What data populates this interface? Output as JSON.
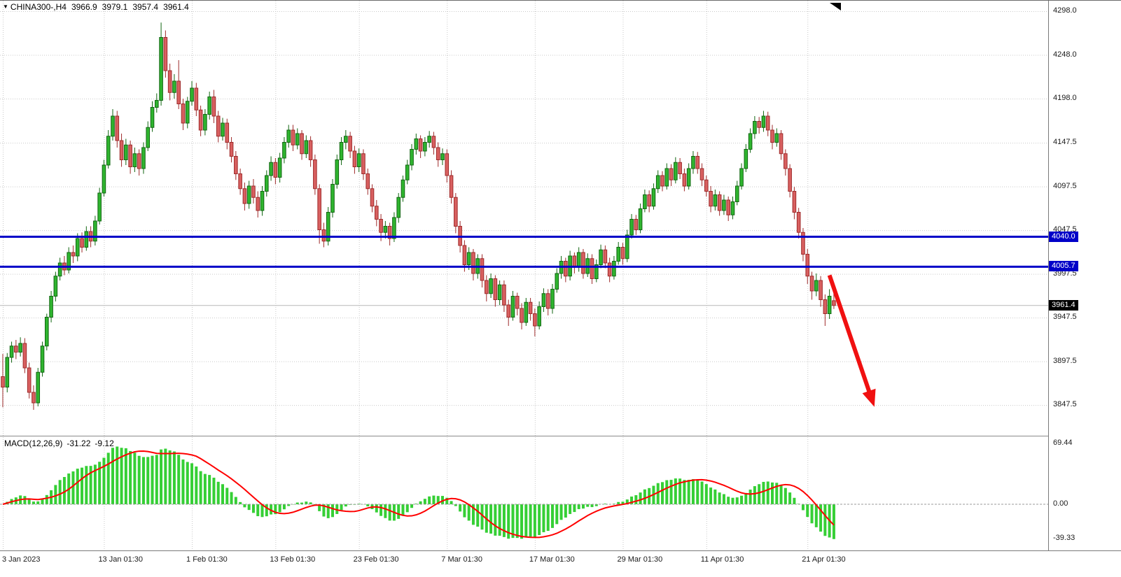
{
  "header": {
    "dropdown_icon": "▼",
    "symbol": "CHINA300-,H4",
    "open": "3966.9",
    "high": "3979.1",
    "low": "3957.4",
    "close": "3961.4"
  },
  "colors": {
    "bull": "#2FB52F",
    "bull_border": "#116611",
    "bear": "#D86060",
    "bear_border": "#9E2B2B",
    "grid": "#c9c9c9",
    "level_line": "#0000C8",
    "current_line": "#b8b8b8",
    "macd_bar": "#35CF35",
    "macd_signal": "#FF0000",
    "arrow": "#F01010",
    "badge_current_bg": "#000000"
  },
  "chart_data": {
    "type": "candlestick",
    "symbol": "CHINA300-",
    "timeframe": "H4",
    "price_axis": {
      "visible_min": 3812,
      "visible_max": 4310,
      "ticks": [
        {
          "value": 4298.0,
          "label": "4298.0"
        },
        {
          "value": 4248.0,
          "label": "4248.0"
        },
        {
          "value": 4198.0,
          "label": "4198.0"
        },
        {
          "value": 4147.5,
          "label": "4147.5"
        },
        {
          "value": 4097.5,
          "label": "4097.5"
        },
        {
          "value": 4047.5,
          "label": "4047.5"
        },
        {
          "value": 3997.5,
          "label": "3997.5"
        },
        {
          "value": 3947.5,
          "label": "3947.5"
        },
        {
          "value": 3897.5,
          "label": "3897.5"
        },
        {
          "value": 3847.5,
          "label": "3847.5"
        }
      ]
    },
    "time_axis": {
      "ticks": [
        {
          "label": "3 Jan 2023",
          "index": 0
        },
        {
          "label": "13 Jan 01:30",
          "index": 23
        },
        {
          "label": "1 Feb 01:30",
          "index": 43
        },
        {
          "label": "13 Feb 01:30",
          "index": 62
        },
        {
          "label": "23 Feb 01:30",
          "index": 81
        },
        {
          "label": "7 Mar 01:30",
          "index": 101
        },
        {
          "label": "17 Mar 01:30",
          "index": 121
        },
        {
          "label": "29 Mar 01:30",
          "index": 141
        },
        {
          "label": "11 Apr 01:30",
          "index": 160
        },
        {
          "label": "21 Apr 01:30",
          "index": 183
        }
      ]
    },
    "levels": [
      {
        "price": 4040.0,
        "label": "4040.0"
      },
      {
        "price": 4005.7,
        "label": "4005.7"
      }
    ],
    "current_price": {
      "value": 3961.4,
      "label": "3961.4"
    },
    "annotations": [
      {
        "type": "arrow",
        "from_index": 188,
        "from_price": 3996,
        "to_index": 197.5,
        "to_price": 3856
      }
    ],
    "indicator": {
      "type": "MACD",
      "name": "MACD(12,26,9)",
      "params": [
        12,
        26,
        9
      ],
      "main_value": "-31.22",
      "signal_value": "-9.12",
      "axis_ticks": [
        {
          "value": 69.44,
          "label": "69.44"
        },
        {
          "value": 0,
          "label": "0.00"
        },
        {
          "value": -39.33,
          "label": "-39.33"
        }
      ]
    },
    "candles": [
      [
        3880,
        3906,
        3845,
        3868
      ],
      [
        3868,
        3907,
        3862,
        3902
      ],
      [
        3902,
        3920,
        3896,
        3915
      ],
      [
        3915,
        3922,
        3900,
        3908
      ],
      [
        3908,
        3925,
        3903,
        3918
      ],
      [
        3918,
        3924,
        3884,
        3890
      ],
      [
        3890,
        3896,
        3855,
        3862
      ],
      [
        3862,
        3870,
        3842,
        3850
      ],
      [
        3850,
        3890,
        3846,
        3885
      ],
      [
        3885,
        3920,
        3880,
        3915
      ],
      [
        3915,
        3952,
        3910,
        3948
      ],
      [
        3948,
        3978,
        3942,
        3972
      ],
      [
        3972,
        4000,
        3966,
        3995
      ],
      [
        3995,
        4016,
        3990,
        4010
      ],
      [
        4010,
        4018,
        3996,
        4002
      ],
      [
        4002,
        4028,
        3998,
        4022
      ],
      [
        4022,
        4030,
        4010,
        4018
      ],
      [
        4018,
        4044,
        4012,
        4038
      ],
      [
        4038,
        4045,
        4022,
        4028
      ],
      [
        4028,
        4052,
        4024,
        4046
      ],
      [
        4046,
        4052,
        4028,
        4035
      ],
      [
        4035,
        4064,
        4030,
        4058
      ],
      [
        4058,
        4096,
        4054,
        4090
      ],
      [
        4090,
        4128,
        4086,
        4122
      ],
      [
        4122,
        4162,
        4118,
        4155
      ],
      [
        4155,
        4186,
        4150,
        4178
      ],
      [
        4178,
        4184,
        4142,
        4150
      ],
      [
        4150,
        4158,
        4120,
        4128
      ],
      [
        4128,
        4152,
        4122,
        4145
      ],
      [
        4145,
        4150,
        4112,
        4120
      ],
      [
        4120,
        4142,
        4114,
        4135
      ],
      [
        4135,
        4140,
        4110,
        4118
      ],
      [
        4118,
        4148,
        4112,
        4142
      ],
      [
        4142,
        4172,
        4138,
        4165
      ],
      [
        4165,
        4195,
        4160,
        4188
      ],
      [
        4188,
        4204,
        4182,
        4196
      ],
      [
        4196,
        4285,
        4190,
        4268
      ],
      [
        4268,
        4276,
        4222,
        4230
      ],
      [
        4230,
        4238,
        4196,
        4205
      ],
      [
        4205,
        4226,
        4198,
        4218
      ],
      [
        4218,
        4242,
        4186,
        4192
      ],
      [
        4192,
        4198,
        4162,
        4170
      ],
      [
        4170,
        4200,
        4164,
        4195
      ],
      [
        4195,
        4218,
        4190,
        4210
      ],
      [
        4210,
        4216,
        4178,
        4185
      ],
      [
        4185,
        4190,
        4155,
        4162
      ],
      [
        4162,
        4186,
        4156,
        4180
      ],
      [
        4180,
        4206,
        4174,
        4200
      ],
      [
        4200,
        4208,
        4170,
        4178
      ],
      [
        4178,
        4184,
        4148,
        4155
      ],
      [
        4155,
        4176,
        4150,
        4170
      ],
      [
        4170,
        4175,
        4140,
        4148
      ],
      [
        4148,
        4154,
        4125,
        4132
      ],
      [
        4132,
        4138,
        4105,
        4112
      ],
      [
        4112,
        4118,
        4088,
        4095
      ],
      [
        4095,
        4102,
        4070,
        4078
      ],
      [
        4078,
        4104,
        4072,
        4098
      ],
      [
        4098,
        4106,
        4078,
        4085
      ],
      [
        4085,
        4092,
        4062,
        4070
      ],
      [
        4070,
        4098,
        4064,
        4092
      ],
      [
        4092,
        4116,
        4086,
        4110
      ],
      [
        4110,
        4132,
        4104,
        4125
      ],
      [
        4125,
        4130,
        4100,
        4108
      ],
      [
        4108,
        4136,
        4102,
        4130
      ],
      [
        4130,
        4154,
        4124,
        4148
      ],
      [
        4148,
        4168,
        4142,
        4162
      ],
      [
        4162,
        4168,
        4138,
        4145
      ],
      [
        4145,
        4164,
        4140,
        4158
      ],
      [
        4158,
        4162,
        4128,
        4135
      ],
      [
        4135,
        4156,
        4130,
        4150
      ],
      [
        4150,
        4155,
        4120,
        4128
      ],
      [
        4128,
        4134,
        4088,
        4095
      ],
      [
        4095,
        4100,
        4032,
        4048
      ],
      [
        4048,
        4056,
        4028,
        4035
      ],
      [
        4035,
        4074,
        4030,
        4068
      ],
      [
        4068,
        4106,
        4062,
        4100
      ],
      [
        4100,
        4134,
        4095,
        4128
      ],
      [
        4128,
        4154,
        4122,
        4148
      ],
      [
        4148,
        4162,
        4140,
        4155
      ],
      [
        4155,
        4160,
        4130,
        4138
      ],
      [
        4138,
        4144,
        4112,
        4120
      ],
      [
        4120,
        4141,
        4114,
        4135
      ],
      [
        4135,
        4140,
        4105,
        4112
      ],
      [
        4112,
        4118,
        4088,
        4095
      ],
      [
        4095,
        4100,
        4068,
        4075
      ],
      [
        4075,
        4082,
        4052,
        4060
      ],
      [
        4060,
        4066,
        4035,
        4045
      ],
      [
        4045,
        4058,
        4038,
        4052
      ],
      [
        4052,
        4056,
        4030,
        4038
      ],
      [
        4038,
        4068,
        4034,
        4062
      ],
      [
        4062,
        4090,
        4056,
        4085
      ],
      [
        4085,
        4110,
        4080,
        4105
      ],
      [
        4105,
        4128,
        4100,
        4122
      ],
      [
        4122,
        4146,
        4116,
        4140
      ],
      [
        4140,
        4158,
        4134,
        4152
      ],
      [
        4152,
        4156,
        4130,
        4138
      ],
      [
        4138,
        4154,
        4132,
        4148
      ],
      [
        4148,
        4161,
        4142,
        4155
      ],
      [
        4155,
        4160,
        4134,
        4142
      ],
      [
        4142,
        4148,
        4120,
        4128
      ],
      [
        4128,
        4141,
        4122,
        4135
      ],
      [
        4135,
        4140,
        4102,
        4110
      ],
      [
        4110,
        4116,
        4078,
        4085
      ],
      [
        4085,
        4090,
        4044,
        4052
      ],
      [
        4052,
        4058,
        4022,
        4030
      ],
      [
        4030,
        4036,
        4000,
        4008
      ],
      [
        4008,
        4028,
        4002,
        4022
      ],
      [
        4022,
        4026,
        3990,
        3998
      ],
      [
        3998,
        4020,
        3992,
        4015
      ],
      [
        4015,
        4020,
        3982,
        3990
      ],
      [
        3990,
        3996,
        3966,
        3975
      ],
      [
        3975,
        3998,
        3970,
        3992
      ],
      [
        3992,
        3996,
        3960,
        3968
      ],
      [
        3968,
        3990,
        3962,
        3985
      ],
      [
        3985,
        3990,
        3954,
        3962
      ],
      [
        3962,
        3968,
        3938,
        3948
      ],
      [
        3948,
        3978,
        3944,
        3972
      ],
      [
        3972,
        3976,
        3950,
        3958
      ],
      [
        3958,
        3964,
        3934,
        3942
      ],
      [
        3942,
        3970,
        3938,
        3965
      ],
      [
        3965,
        3970,
        3944,
        3952
      ],
      [
        3952,
        3958,
        3926,
        3938
      ],
      [
        3938,
        3966,
        3934,
        3960
      ],
      [
        3960,
        3981,
        3954,
        3975
      ],
      [
        3975,
        3980,
        3950,
        3958
      ],
      [
        3958,
        3986,
        3952,
        3980
      ],
      [
        3980,
        4004,
        3976,
        3998
      ],
      [
        3998,
        4018,
        3992,
        4012
      ],
      [
        4012,
        4016,
        3988,
        3995
      ],
      [
        3995,
        4024,
        3990,
        4018
      ],
      [
        4018,
        4022,
        3998,
        4005
      ],
      [
        4005,
        4028,
        4000,
        4022
      ],
      [
        4022,
        4026,
        3992,
        3998
      ],
      [
        3998,
        4021,
        3994,
        4015
      ],
      [
        4015,
        4020,
        3986,
        3992
      ],
      [
        3992,
        4014,
        3988,
        4008
      ],
      [
        4008,
        4031,
        4004,
        4025
      ],
      [
        4025,
        4030,
        4004,
        4010
      ],
      [
        4010,
        4016,
        3988,
        3995
      ],
      [
        3995,
        4018,
        3991,
        4012
      ],
      [
        4012,
        4034,
        4008,
        4028
      ],
      [
        4028,
        4033,
        4008,
        4015
      ],
      [
        4015,
        4048,
        4011,
        4042
      ],
      [
        4042,
        4066,
        4038,
        4060
      ],
      [
        4060,
        4065,
        4042,
        4048
      ],
      [
        4048,
        4078,
        4044,
        4072
      ],
      [
        4072,
        4094,
        4068,
        4088
      ],
      [
        4088,
        4093,
        4068,
        4075
      ],
      [
        4075,
        4101,
        4071,
        4095
      ],
      [
        4095,
        4116,
        4090,
        4110
      ],
      [
        4110,
        4115,
        4092,
        4098
      ],
      [
        4098,
        4124,
        4094,
        4118
      ],
      [
        4118,
        4123,
        4098,
        4105
      ],
      [
        4105,
        4131,
        4101,
        4125
      ],
      [
        4125,
        4130,
        4106,
        4112
      ],
      [
        4112,
        4118,
        4092,
        4098
      ],
      [
        4098,
        4124,
        4094,
        4118
      ],
      [
        4118,
        4138,
        4112,
        4132
      ],
      [
        4132,
        4137,
        4112,
        4118
      ],
      [
        4118,
        4124,
        4098,
        4105
      ],
      [
        4105,
        4110,
        4086,
        4092
      ],
      [
        4092,
        4098,
        4068,
        4075
      ],
      [
        4075,
        4094,
        4070,
        4088
      ],
      [
        4088,
        4092,
        4064,
        4070
      ],
      [
        4070,
        4088,
        4065,
        4082
      ],
      [
        4082,
        4086,
        4058,
        4065
      ],
      [
        4065,
        4086,
        4060,
        4080
      ],
      [
        4080,
        4104,
        4076,
        4098
      ],
      [
        4098,
        4124,
        4094,
        4118
      ],
      [
        4118,
        4146,
        4114,
        4140
      ],
      [
        4140,
        4164,
        4136,
        4158
      ],
      [
        4158,
        4178,
        4152,
        4172
      ],
      [
        4172,
        4177,
        4158,
        4165
      ],
      [
        4165,
        4184,
        4160,
        4178
      ],
      [
        4178,
        4183,
        4155,
        4162
      ],
      [
        4162,
        4168,
        4140,
        4148
      ],
      [
        4148,
        4164,
        4143,
        4158
      ],
      [
        4158,
        4162,
        4128,
        4135
      ],
      [
        4135,
        4140,
        4110,
        4118
      ],
      [
        4118,
        4123,
        4085,
        4092
      ],
      [
        4092,
        4097,
        4060,
        4068
      ],
      [
        4068,
        4073,
        4038,
        4045
      ],
      [
        4045,
        4050,
        4012,
        4020
      ],
      [
        4020,
        4026,
        3986,
        3995
      ],
      [
        3995,
        4000,
        3968,
        3978
      ],
      [
        3978,
        3998,
        3972,
        3990
      ],
      [
        3990,
        3995,
        3960,
        3968
      ],
      [
        3968,
        3974,
        3938,
        3952
      ],
      [
        3952,
        3980,
        3946,
        3972
      ],
      [
        3966.9,
        3979.1,
        3957.4,
        3961.4
      ]
    ]
  }
}
